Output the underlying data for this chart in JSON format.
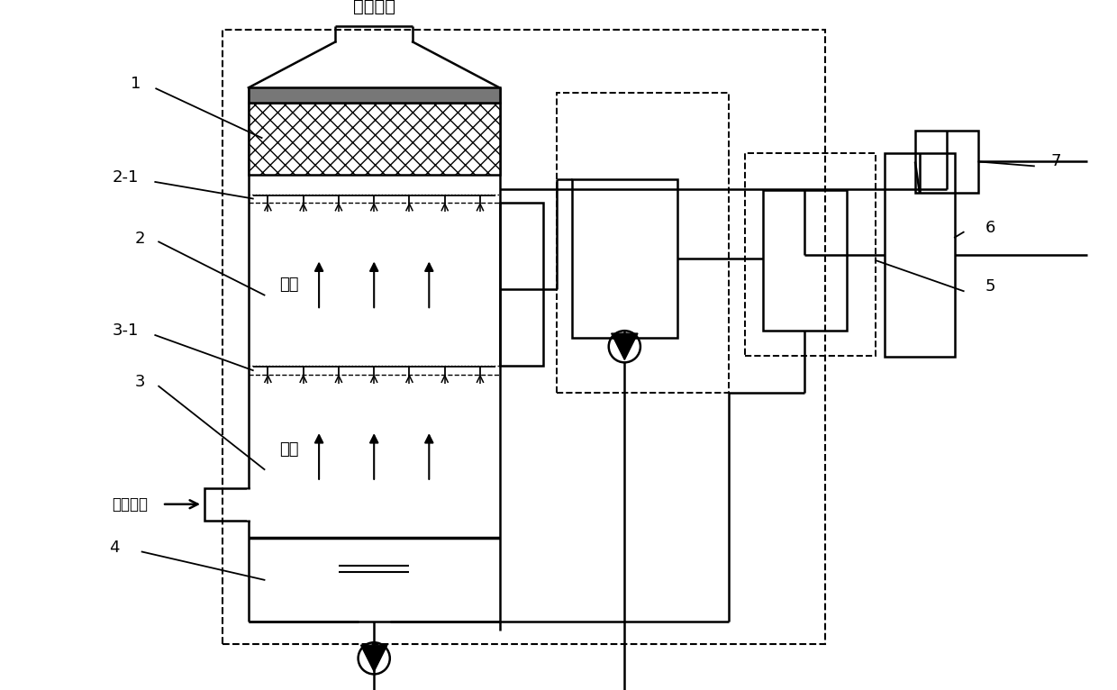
{
  "bg_color": "#ffffff",
  "lc": "#000000",
  "outlet_text": "烟气出口",
  "inlet_text": "烟气入口",
  "smoke_text": "烟气",
  "labels": [
    "1",
    "2-1",
    "2",
    "3-1",
    "3",
    "4",
    "5",
    "6",
    "7"
  ]
}
